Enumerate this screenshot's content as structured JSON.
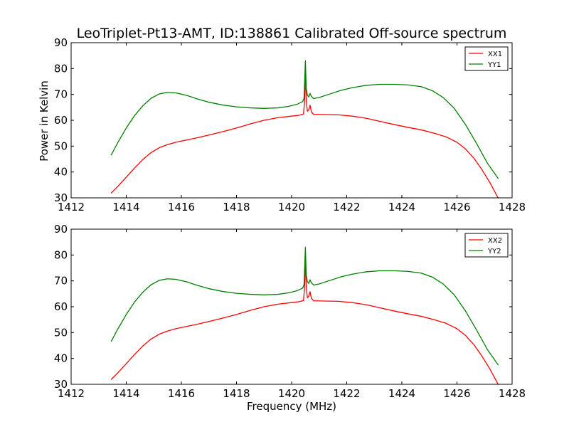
{
  "figure": {
    "title": "LeoTriplet-Pt13-AMT, ID:138861 Calibrated Off-source spectrum",
    "xlabel": "Frequency (MHz)",
    "ylabel": "Power in Kelvin"
  },
  "colors": {
    "XX": "#ff0000",
    "YY": "#008000"
  },
  "chart_data": [
    {
      "type": "line",
      "title": "LeoTriplet-Pt13-AMT, ID:138861 Calibrated Off-source spectrum",
      "xlabel": "",
      "ylabel": "Power in Kelvin",
      "xlim": [
        1412,
        1428
      ],
      "ylim": [
        30,
        90
      ],
      "xticks": [
        "1412",
        "1414",
        "1416",
        "1418",
        "1420",
        "1422",
        "1424",
        "1426",
        "1428"
      ],
      "yticks": [
        "30",
        "40",
        "50",
        "60",
        "70",
        "80",
        "90"
      ],
      "legend_position": "top-right",
      "grid": false,
      "series": [
        {
          "name": "XX1",
          "color": "#ff0000",
          "points": [
            [
              1413.45,
              31.8
            ],
            [
              1413.7,
              34.5
            ],
            [
              1414.0,
              38.0
            ],
            [
              1414.3,
              41.5
            ],
            [
              1414.6,
              44.8
            ],
            [
              1414.9,
              47.5
            ],
            [
              1415.2,
              49.4
            ],
            [
              1415.5,
              50.6
            ],
            [
              1415.8,
              51.5
            ],
            [
              1416.2,
              52.4
            ],
            [
              1416.6,
              53.3
            ],
            [
              1417.0,
              54.3
            ],
            [
              1417.5,
              55.6
            ],
            [
              1418.0,
              57.0
            ],
            [
              1418.5,
              58.6
            ],
            [
              1419.0,
              60.0
            ],
            [
              1419.5,
              61.0
            ],
            [
              1420.0,
              61.6
            ],
            [
              1420.3,
              62.0
            ],
            [
              1420.43,
              62.4
            ],
            [
              1420.47,
              67.0
            ],
            [
              1420.5,
              78.5
            ],
            [
              1420.53,
              68.0
            ],
            [
              1420.57,
              63.5
            ],
            [
              1420.62,
              64.0
            ],
            [
              1420.67,
              65.8
            ],
            [
              1420.72,
              63.2
            ],
            [
              1420.8,
              62.3
            ],
            [
              1421.2,
              62.2
            ],
            [
              1421.7,
              62.1
            ],
            [
              1422.2,
              61.6
            ],
            [
              1422.7,
              60.8
            ],
            [
              1423.2,
              59.6
            ],
            [
              1423.7,
              58.4
            ],
            [
              1424.2,
              57.3
            ],
            [
              1424.7,
              56.3
            ],
            [
              1425.2,
              54.9
            ],
            [
              1425.6,
              53.6
            ],
            [
              1426.0,
              51.5
            ],
            [
              1426.3,
              49.0
            ],
            [
              1426.6,
              45.5
            ],
            [
              1426.9,
              41.0
            ],
            [
              1427.2,
              35.8
            ],
            [
              1427.5,
              29.8
            ]
          ]
        },
        {
          "name": "YY1",
          "color": "#008000",
          "points": [
            [
              1413.45,
              46.5
            ],
            [
              1413.7,
              51.5
            ],
            [
              1414.0,
              57.0
            ],
            [
              1414.3,
              61.8
            ],
            [
              1414.6,
              65.6
            ],
            [
              1414.9,
              68.5
            ],
            [
              1415.2,
              70.2
            ],
            [
              1415.5,
              70.8
            ],
            [
              1415.8,
              70.6
            ],
            [
              1416.2,
              69.6
            ],
            [
              1416.6,
              68.2
            ],
            [
              1417.0,
              67.0
            ],
            [
              1417.5,
              65.9
            ],
            [
              1418.0,
              65.2
            ],
            [
              1418.5,
              64.8
            ],
            [
              1419.0,
              64.6
            ],
            [
              1419.5,
              64.8
            ],
            [
              1419.9,
              65.4
            ],
            [
              1420.2,
              66.2
            ],
            [
              1420.4,
              67.2
            ],
            [
              1420.45,
              68.5
            ],
            [
              1420.5,
              83.0
            ],
            [
              1420.53,
              72.5
            ],
            [
              1420.57,
              69.8
            ],
            [
              1420.62,
              69.0
            ],
            [
              1420.67,
              70.4
            ],
            [
              1420.72,
              69.2
            ],
            [
              1420.8,
              68.4
            ],
            [
              1421.0,
              68.8
            ],
            [
              1421.4,
              70.2
            ],
            [
              1421.8,
              71.6
            ],
            [
              1422.2,
              72.6
            ],
            [
              1422.7,
              73.5
            ],
            [
              1423.2,
              73.9
            ],
            [
              1423.7,
              73.9
            ],
            [
              1424.2,
              73.7
            ],
            [
              1424.7,
              73.0
            ],
            [
              1425.1,
              71.5
            ],
            [
              1425.5,
              68.8
            ],
            [
              1425.9,
              64.6
            ],
            [
              1426.3,
              58.5
            ],
            [
              1426.7,
              51.2
            ],
            [
              1427.1,
              43.5
            ],
            [
              1427.5,
              37.4
            ]
          ]
        }
      ]
    },
    {
      "type": "line",
      "title": "",
      "xlabel": "Frequency (MHz)",
      "ylabel": "",
      "xlim": [
        1412,
        1428
      ],
      "ylim": [
        30,
        90
      ],
      "xticks": [
        "1412",
        "1414",
        "1416",
        "1418",
        "1420",
        "1422",
        "1424",
        "1426",
        "1428"
      ],
      "yticks": [
        "30",
        "40",
        "50",
        "60",
        "70",
        "80",
        "90"
      ],
      "legend_position": "top-right",
      "grid": false,
      "series": [
        {
          "name": "XX2",
          "color": "#ff0000",
          "points": [
            [
              1413.45,
              31.8
            ],
            [
              1413.7,
              34.5
            ],
            [
              1414.0,
              38.0
            ],
            [
              1414.3,
              41.5
            ],
            [
              1414.6,
              44.8
            ],
            [
              1414.9,
              47.5
            ],
            [
              1415.2,
              49.4
            ],
            [
              1415.5,
              50.6
            ],
            [
              1415.8,
              51.5
            ],
            [
              1416.2,
              52.4
            ],
            [
              1416.6,
              53.3
            ],
            [
              1417.0,
              54.3
            ],
            [
              1417.5,
              55.6
            ],
            [
              1418.0,
              57.0
            ],
            [
              1418.5,
              58.6
            ],
            [
              1419.0,
              60.0
            ],
            [
              1419.5,
              61.0
            ],
            [
              1420.0,
              61.6
            ],
            [
              1420.3,
              62.0
            ],
            [
              1420.43,
              62.4
            ],
            [
              1420.47,
              67.0
            ],
            [
              1420.5,
              78.5
            ],
            [
              1420.53,
              68.0
            ],
            [
              1420.57,
              63.5
            ],
            [
              1420.62,
              64.0
            ],
            [
              1420.67,
              65.8
            ],
            [
              1420.72,
              63.2
            ],
            [
              1420.8,
              62.3
            ],
            [
              1421.2,
              62.2
            ],
            [
              1421.7,
              62.1
            ],
            [
              1422.2,
              61.6
            ],
            [
              1422.7,
              60.8
            ],
            [
              1423.2,
              59.6
            ],
            [
              1423.7,
              58.4
            ],
            [
              1424.2,
              57.3
            ],
            [
              1424.7,
              56.3
            ],
            [
              1425.2,
              54.9
            ],
            [
              1425.6,
              53.6
            ],
            [
              1426.0,
              51.5
            ],
            [
              1426.3,
              49.0
            ],
            [
              1426.6,
              45.5
            ],
            [
              1426.9,
              41.0
            ],
            [
              1427.2,
              35.8
            ],
            [
              1427.5,
              29.8
            ]
          ]
        },
        {
          "name": "YY2",
          "color": "#008000",
          "points": [
            [
              1413.45,
              46.5
            ],
            [
              1413.7,
              51.5
            ],
            [
              1414.0,
              57.0
            ],
            [
              1414.3,
              61.8
            ],
            [
              1414.6,
              65.6
            ],
            [
              1414.9,
              68.5
            ],
            [
              1415.2,
              70.2
            ],
            [
              1415.5,
              70.8
            ],
            [
              1415.8,
              70.6
            ],
            [
              1416.2,
              69.6
            ],
            [
              1416.6,
              68.2
            ],
            [
              1417.0,
              67.0
            ],
            [
              1417.5,
              65.9
            ],
            [
              1418.0,
              65.2
            ],
            [
              1418.5,
              64.8
            ],
            [
              1419.0,
              64.6
            ],
            [
              1419.5,
              64.8
            ],
            [
              1419.9,
              65.4
            ],
            [
              1420.2,
              66.2
            ],
            [
              1420.4,
              67.2
            ],
            [
              1420.45,
              68.5
            ],
            [
              1420.5,
              83.0
            ],
            [
              1420.53,
              72.5
            ],
            [
              1420.57,
              69.8
            ],
            [
              1420.62,
              69.0
            ],
            [
              1420.67,
              70.4
            ],
            [
              1420.72,
              69.2
            ],
            [
              1420.8,
              68.4
            ],
            [
              1421.0,
              68.8
            ],
            [
              1421.4,
              70.2
            ],
            [
              1421.8,
              71.6
            ],
            [
              1422.2,
              72.6
            ],
            [
              1422.7,
              73.5
            ],
            [
              1423.2,
              73.9
            ],
            [
              1423.7,
              73.9
            ],
            [
              1424.2,
              73.7
            ],
            [
              1424.7,
              73.0
            ],
            [
              1425.1,
              71.5
            ],
            [
              1425.5,
              68.8
            ],
            [
              1425.9,
              64.6
            ],
            [
              1426.3,
              58.5
            ],
            [
              1426.7,
              51.2
            ],
            [
              1427.1,
              43.5
            ],
            [
              1427.5,
              37.4
            ]
          ]
        }
      ]
    }
  ]
}
